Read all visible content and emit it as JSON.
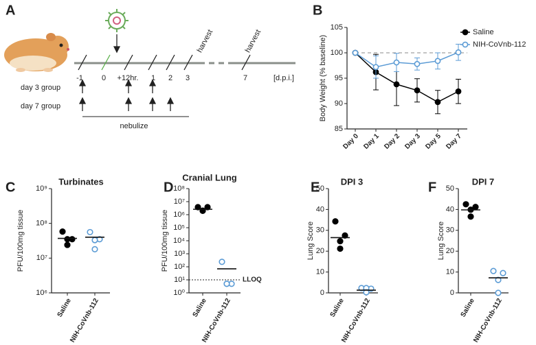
{
  "diagram": {
    "label": "A",
    "timeline": [
      "-1",
      "0",
      "+12hr.",
      "1",
      "2",
      "3",
      "7"
    ],
    "unit": "[d.p.i.]",
    "harvest": [
      "harvest",
      "harvest"
    ],
    "groups": [
      "day 3 group",
      "day 7 group"
    ],
    "treatment": "nebulize"
  },
  "chart_data": [
    {
      "label": "B",
      "type": "line",
      "categories": [
        "Day 0",
        "Day 1",
        "Day 2",
        "Day 3",
        "Day 5",
        "Day 7"
      ],
      "ylabel": "Body Weight (% baseline)",
      "ylim": [
        85,
        105
      ],
      "yticks": [
        85,
        90,
        95,
        100,
        105
      ],
      "reference": 100,
      "legend": "right",
      "series": [
        {
          "name": "Saline",
          "color": "#000000",
          "marker": "filled",
          "values": [
            100,
            96.2,
            93.8,
            92.6,
            90.3,
            92.4
          ],
          "errors": [
            0,
            3.5,
            4.2,
            2.3,
            2.3,
            2.4
          ]
        },
        {
          "name": "NIH-CoVnb-112",
          "color": "#5b9bd5",
          "marker": "open",
          "values": [
            100,
            97.2,
            98.1,
            97.8,
            98.4,
            100.1
          ],
          "errors": [
            0,
            2.2,
            1.8,
            1.2,
            1.6,
            1.6
          ]
        }
      ]
    },
    {
      "label": "C",
      "type": "strip",
      "title": "Turbinates",
      "ylabel": "PFU/100mg tissue",
      "log": true,
      "ylim": [
        1000000,
        1000000000
      ],
      "yticks": [
        {
          "value": 1000000,
          "label": "10⁶"
        },
        {
          "value": 10000000,
          "label": "10⁷"
        },
        {
          "value": 100000000,
          "label": "10⁸"
        },
        {
          "value": 1000000000,
          "label": "10⁹"
        }
      ],
      "categories": [
        "Saline",
        "NIH-CoVnb-112"
      ],
      "groups": [
        {
          "color": "#000000",
          "marker": "filled",
          "values": [
            58000000,
            35000000,
            35000000,
            24000000
          ],
          "center": 37000000
        },
        {
          "color": "#5b9bd5",
          "marker": "open",
          "values": [
            56000000,
            35000000,
            33000000,
            18000000
          ],
          "center": 40000000
        }
      ]
    },
    {
      "label": "D",
      "type": "strip",
      "title": "Cranial Lung",
      "ylabel": "PFU/100mg tissue",
      "log": true,
      "ylim": [
        1,
        100000000
      ],
      "yticks": [
        {
          "value": 1,
          "label": "10⁰"
        },
        {
          "value": 10,
          "label": "10¹"
        },
        {
          "value": 100,
          "label": "10²"
        },
        {
          "value": 1000,
          "label": "10³"
        },
        {
          "value": 10000,
          "label": "10⁴"
        },
        {
          "value": 100000,
          "label": "10⁵"
        },
        {
          "value": 1000000,
          "label": "10⁶"
        },
        {
          "value": 10000000,
          "label": "10⁷"
        },
        {
          "value": 100000000,
          "label": "10⁸"
        }
      ],
      "categories": [
        "Saline",
        "NIH-CoVnb-112"
      ],
      "lloq": {
        "value": 10,
        "label": "LLOQ"
      },
      "groups": [
        {
          "color": "#000000",
          "marker": "filled",
          "values": [
            3800000,
            3800000,
            2000000,
            2000000
          ],
          "center": 2600000
        },
        {
          "color": "#5b9bd5",
          "marker": "open",
          "values": [
            240,
            5,
            5,
            5
          ],
          "center": 70
        }
      ]
    },
    {
      "label": "E",
      "type": "strip",
      "title": "DPI 3",
      "ylabel": "Lung Score",
      "ylim": [
        0,
        50
      ],
      "yticks": [
        0,
        10,
        20,
        30,
        40,
        50
      ],
      "categories": [
        "Saline",
        "NIH-CoVnb-112"
      ],
      "groups": [
        {
          "color": "#000000",
          "marker": "filled",
          "values": [
            34.3,
            27.5,
            24.8,
            21.2
          ],
          "center": 26.5
        },
        {
          "color": "#5b9bd5",
          "marker": "open",
          "values": [
            2.3,
            2,
            2.3,
            0.3
          ],
          "center": 1.3
        }
      ]
    },
    {
      "label": "F",
      "type": "strip",
      "title": "DPI 7",
      "ylabel": "Lung Score",
      "ylim": [
        0,
        50
      ],
      "yticks": [
        0,
        10,
        20,
        30,
        40,
        50
      ],
      "categories": [
        "Saline",
        "NIH-CoVnb-112"
      ],
      "groups": [
        {
          "color": "#000000",
          "marker": "filled",
          "values": [
            42.5,
            41.2,
            39.9,
            36.6
          ],
          "center": 39.8
        },
        {
          "color": "#5b9bd5",
          "marker": "open",
          "values": [
            10.5,
            9.5,
            6.2,
            0
          ],
          "center": 7.2
        }
      ]
    }
  ]
}
